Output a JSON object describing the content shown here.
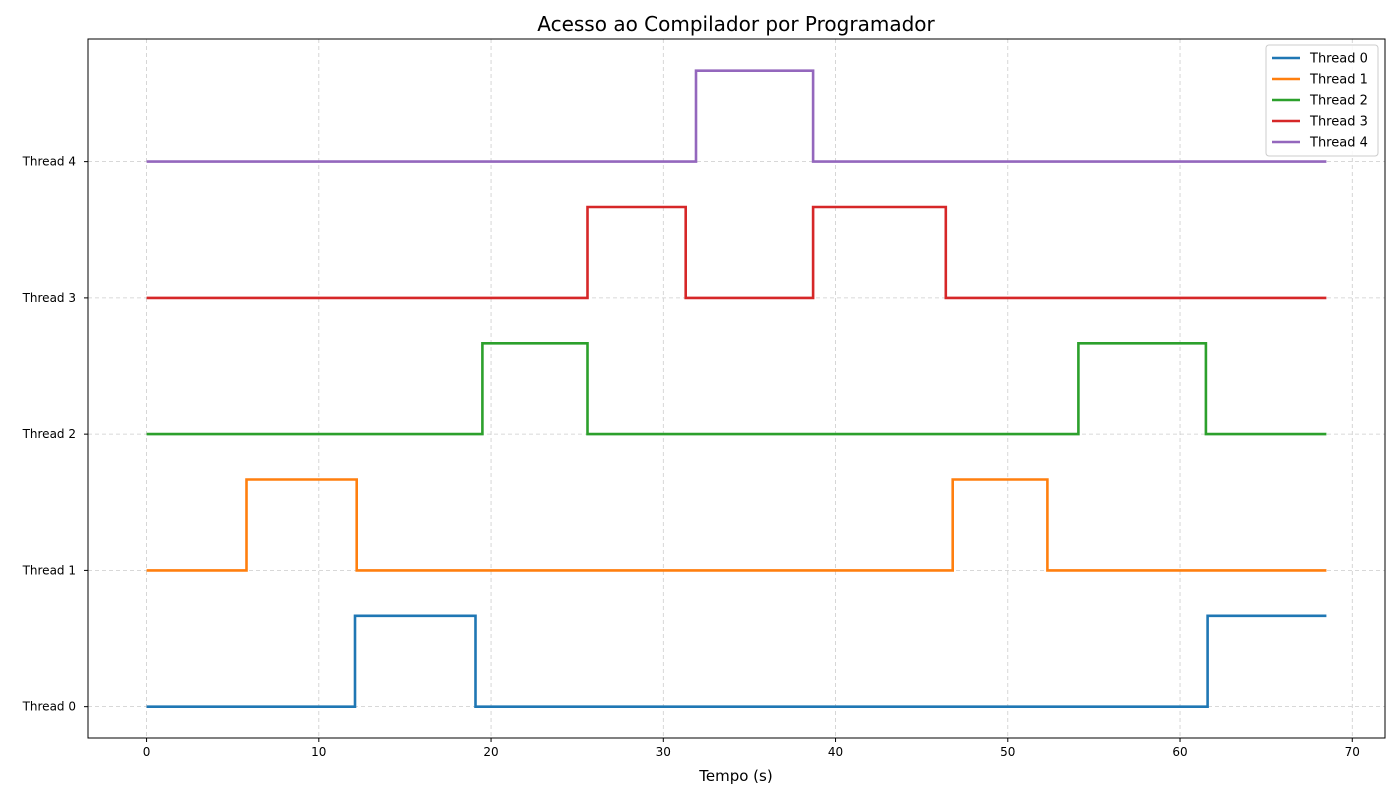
{
  "chart_data": {
    "type": "line",
    "step": true,
    "title": "Acesso ao Compilador por Programador",
    "xlabel": "Tempo (s)",
    "ylabel": "",
    "xlim": [
      -3.4,
      71.9
    ],
    "ylim": [
      -0.23,
      4.9
    ],
    "xticks": [
      0,
      10,
      20,
      30,
      40,
      50,
      60,
      70
    ],
    "yticks": [
      {
        "value": 0,
        "label": "Thread 0"
      },
      {
        "value": 1,
        "label": "Thread 1"
      },
      {
        "value": 2,
        "label": "Thread 2"
      },
      {
        "value": 3,
        "label": "Thread 3"
      },
      {
        "value": 4,
        "label": "Thread 4"
      }
    ],
    "grid": true,
    "legend_position": "top-right",
    "series": [
      {
        "name": "Thread 0",
        "color": "#1f77b4",
        "base": 0,
        "active_height": 0.667,
        "x": [
          0,
          12.1,
          12.1,
          19.1,
          19.1,
          61.6,
          61.6,
          68.5
        ],
        "y": [
          0,
          0,
          0.667,
          0.667,
          0,
          0,
          0.667,
          0.667
        ]
      },
      {
        "name": "Thread 1",
        "color": "#ff7f0e",
        "base": 1,
        "active_height": 0.667,
        "x": [
          0,
          5.8,
          5.8,
          12.2,
          12.2,
          46.8,
          46.8,
          52.3,
          52.3,
          68.5
        ],
        "y": [
          1,
          1,
          1.667,
          1.667,
          1,
          1,
          1.667,
          1.667,
          1,
          1
        ]
      },
      {
        "name": "Thread 2",
        "color": "#2ca02c",
        "base": 2,
        "active_height": 0.667,
        "x": [
          0,
          19.5,
          19.5,
          25.6,
          25.6,
          54.1,
          54.1,
          61.5,
          61.5,
          68.5
        ],
        "y": [
          2,
          2,
          2.667,
          2.667,
          2,
          2,
          2.667,
          2.667,
          2,
          2
        ]
      },
      {
        "name": "Thread 3",
        "color": "#d62728",
        "base": 3,
        "active_height": 0.667,
        "x": [
          0,
          25.6,
          25.6,
          31.3,
          31.3,
          38.7,
          38.7,
          46.4,
          46.4,
          68.5
        ],
        "y": [
          3,
          3,
          3.667,
          3.667,
          3,
          3,
          3.667,
          3.667,
          3,
          3
        ]
      },
      {
        "name": "Thread 4",
        "color": "#9467bd",
        "base": 4,
        "active_height": 0.667,
        "x": [
          0,
          31.9,
          31.9,
          38.7,
          38.7,
          68.5
        ],
        "y": [
          4,
          4,
          4.667,
          4.667,
          4,
          4
        ]
      }
    ]
  }
}
